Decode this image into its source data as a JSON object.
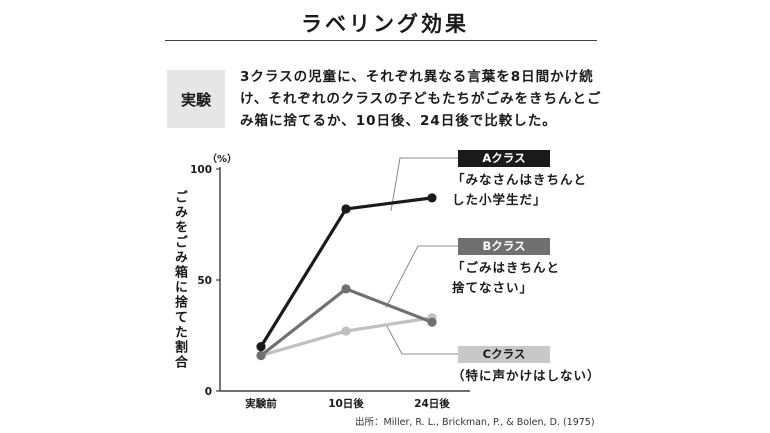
{
  "header": {
    "title": "ラベリング効果"
  },
  "experiment": {
    "badge": "実験",
    "description": "3クラスの児童に、それぞれ異なる言葉を8日間かけ続け、それぞれのクラスの子どもたちがごみをきちんとごみ箱に捨てるか、10日後、24日後で比較した。"
  },
  "colors": {
    "classA": "#1a1a1a",
    "classB": "#707070",
    "classC": "#c0c0c0",
    "axis": "#1a1a1a"
  },
  "chart_data": {
    "type": "line",
    "categories": [
      "実験前",
      "10日後",
      "24日後"
    ],
    "ylabel": "ごみをごみ箱に捨てた割合",
    "yunit": "（%）",
    "ylim": [
      0,
      100
    ],
    "yticks": [
      "0",
      "50",
      "100"
    ],
    "grid": false,
    "series": [
      {
        "name": "Aクラス",
        "quote": "「みなさんはきちんと\nした小学生だ」",
        "values": [
          20,
          82,
          87
        ]
      },
      {
        "name": "Bクラス",
        "quote": "「ごみはきちんと\n捨てなさい」",
        "values": [
          16,
          46,
          31
        ]
      },
      {
        "name": "Cクラス",
        "quote": "（特に声かけはしない）",
        "values": [
          16,
          27,
          33
        ]
      }
    ]
  },
  "source": "出所：Miller, R. L., Brickman, P., & Bolen, D. (1975)"
}
